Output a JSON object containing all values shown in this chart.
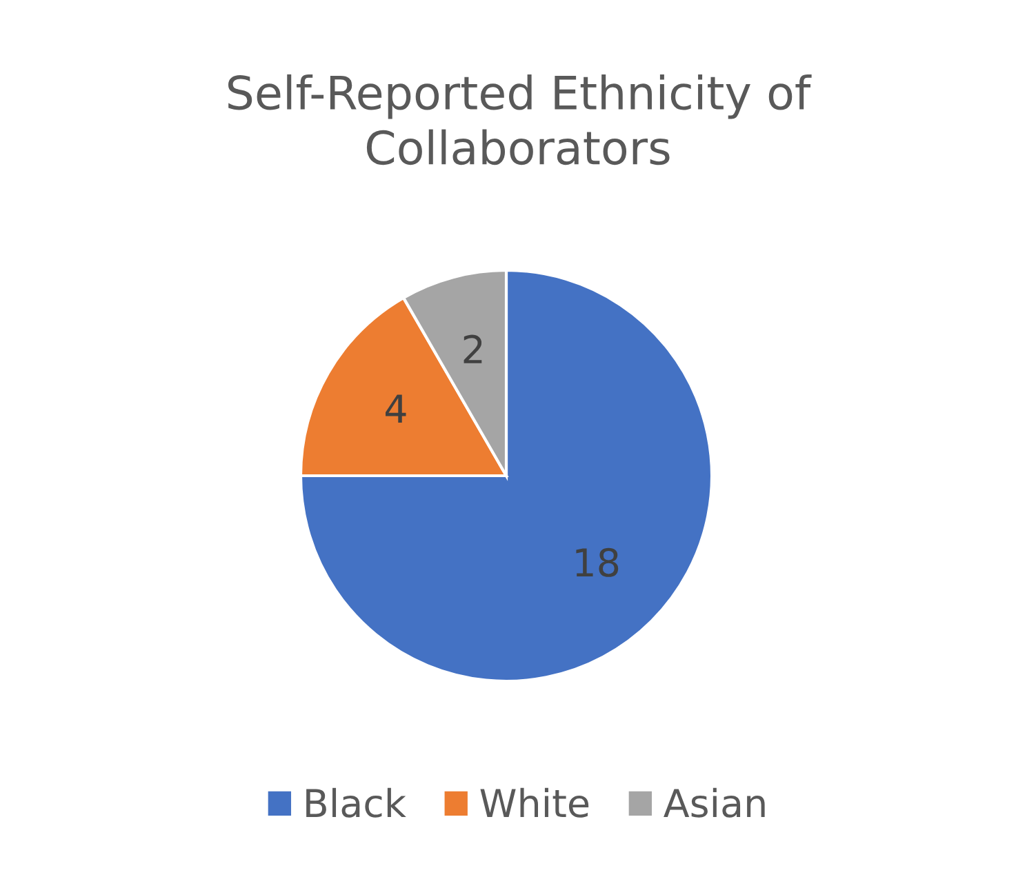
{
  "chart_data": {
    "type": "pie",
    "title": "Self-Reported Ethnicity of\nCollaborators",
    "categories": [
      "Black",
      "White",
      "Asian"
    ],
    "values": [
      18,
      4,
      2
    ],
    "colors": [
      "#4472c4",
      "#ed7d31",
      "#a5a5a5"
    ],
    "data_labels": true,
    "legend": "bottom"
  }
}
